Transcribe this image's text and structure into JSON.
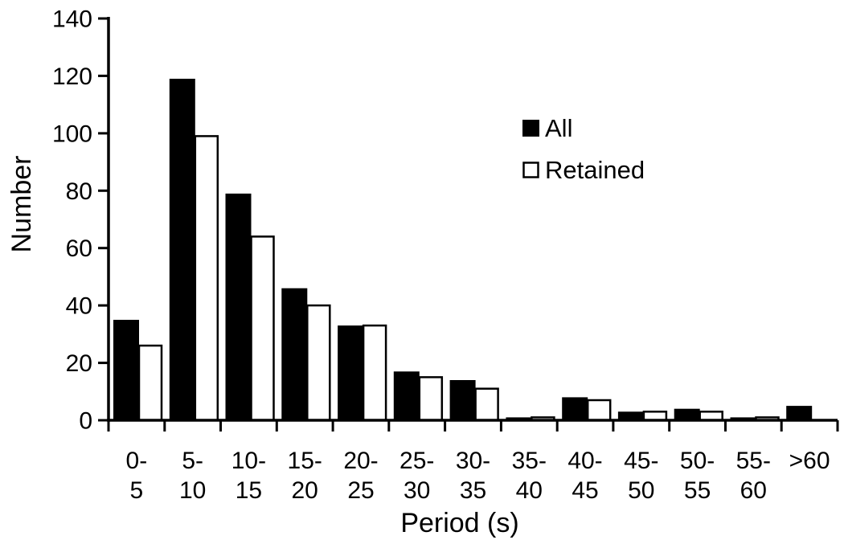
{
  "chart_data": {
    "type": "bar",
    "title": "",
    "xlabel": "Period (s)",
    "ylabel": "Number",
    "ylim": [
      0,
      140
    ],
    "ytick_step": 20,
    "yticks": [
      0,
      20,
      40,
      60,
      80,
      100,
      120,
      140
    ],
    "grid": false,
    "background_color": "#ffffff",
    "axis_color": "#000000",
    "categories": [
      "0-5",
      "5-10",
      "10-15",
      "15-20",
      "20-25",
      "25-30",
      "30-35",
      "35-40",
      "40-45",
      "45-50",
      "50-55",
      "55-60",
      ">60"
    ],
    "category_labels": [
      {
        "line1": "0-",
        "line2": "5"
      },
      {
        "line1": "5-",
        "line2": "10"
      },
      {
        "line1": "10-",
        "line2": "15"
      },
      {
        "line1": "15-",
        "line2": "20"
      },
      {
        "line1": "20-",
        "line2": "25"
      },
      {
        "line1": "25-",
        "line2": "30"
      },
      {
        "line1": "30-",
        "line2": "35"
      },
      {
        "line1": "35-",
        "line2": "40"
      },
      {
        "line1": "40-",
        "line2": "45"
      },
      {
        "line1": "45-",
        "line2": "50"
      },
      {
        "line1": "50-",
        "line2": "55"
      },
      {
        "line1": "55-",
        "line2": "60"
      },
      {
        "line1": ">60",
        "line2": ""
      }
    ],
    "series": [
      {
        "name": "All",
        "swatch": "filled-black-square",
        "color": "#000000",
        "values": [
          35,
          119,
          79,
          46,
          33,
          17,
          14,
          1,
          8,
          3,
          4,
          1,
          5
        ]
      },
      {
        "name": "Retained",
        "swatch": "outlined-white-square",
        "color": "#ffffff",
        "outline": "#000000",
        "values": [
          26,
          99,
          64,
          40,
          33,
          15,
          11,
          1,
          7,
          3,
          3,
          1,
          0
        ]
      }
    ],
    "legend": {
      "position": "inside-upper-right"
    }
  }
}
